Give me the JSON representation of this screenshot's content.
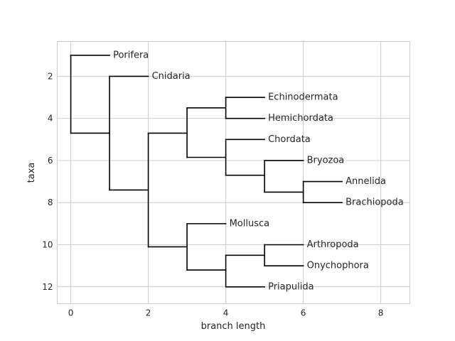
{
  "chart_data": {
    "type": "dendrogram",
    "xlabel": "branch length",
    "ylabel": "taxa",
    "xlim": [
      -0.35,
      8.75
    ],
    "ylim": [
      12.8,
      0.35
    ],
    "y_inverted": true,
    "grid": true,
    "x_ticks": [
      0,
      2,
      4,
      6,
      8
    ],
    "y_ticks": [
      2,
      4,
      6,
      8,
      10,
      12
    ],
    "line_color": "#000000",
    "grid_color": "#cccccc",
    "leaves": [
      {
        "name": "Porifera",
        "x": 1,
        "y": 1
      },
      {
        "name": "Cnidaria",
        "x": 2,
        "y": 2
      },
      {
        "name": "Echinodermata",
        "x": 5,
        "y": 3
      },
      {
        "name": "Hemichordata",
        "x": 5,
        "y": 4
      },
      {
        "name": "Chordata",
        "x": 5,
        "y": 5
      },
      {
        "name": "Bryozoa",
        "x": 6,
        "y": 6
      },
      {
        "name": "Annelida",
        "x": 7,
        "y": 7
      },
      {
        "name": "Brachiopoda",
        "x": 7,
        "y": 8
      },
      {
        "name": "Mollusca",
        "x": 4,
        "y": 9
      },
      {
        "name": "Arthropoda",
        "x": 6,
        "y": 10
      },
      {
        "name": "Onychophora",
        "x": 6,
        "y": 11
      },
      {
        "name": "Priapulida",
        "x": 5,
        "y": 12
      }
    ],
    "branches": [
      {
        "from": [
          0,
          1
        ],
        "to": [
          1,
          1
        ]
      },
      {
        "from": [
          0,
          4.7
        ],
        "to": [
          1,
          4.7
        ]
      },
      {
        "from": [
          0,
          1
        ],
        "to": [
          0,
          4.7
        ]
      },
      {
        "from": [
          1,
          2
        ],
        "to": [
          2,
          2
        ]
      },
      {
        "from": [
          1,
          7.4
        ],
        "to": [
          2,
          7.4
        ]
      },
      {
        "from": [
          1,
          2
        ],
        "to": [
          1,
          7.4
        ]
      },
      {
        "from": [
          2,
          4.7
        ],
        "to": [
          3,
          4.7
        ]
      },
      {
        "from": [
          2,
          10.1
        ],
        "to": [
          3,
          10.1
        ]
      },
      {
        "from": [
          2,
          4.7
        ],
        "to": [
          2,
          10.1
        ]
      },
      {
        "from": [
          3,
          3.5
        ],
        "to": [
          4,
          3.5
        ]
      },
      {
        "from": [
          3,
          5.85
        ],
        "to": [
          4,
          5.85
        ]
      },
      {
        "from": [
          3,
          3.5
        ],
        "to": [
          3,
          5.85
        ]
      },
      {
        "from": [
          4,
          3
        ],
        "to": [
          5,
          3
        ]
      },
      {
        "from": [
          4,
          4
        ],
        "to": [
          5,
          4
        ]
      },
      {
        "from": [
          4,
          3
        ],
        "to": [
          4,
          4
        ]
      },
      {
        "from": [
          4,
          5
        ],
        "to": [
          5,
          5
        ]
      },
      {
        "from": [
          4,
          6.7
        ],
        "to": [
          5,
          6.7
        ]
      },
      {
        "from": [
          4,
          5
        ],
        "to": [
          4,
          6.7
        ]
      },
      {
        "from": [
          5,
          6
        ],
        "to": [
          6,
          6
        ]
      },
      {
        "from": [
          5,
          7.5
        ],
        "to": [
          6,
          7.5
        ]
      },
      {
        "from": [
          5,
          6
        ],
        "to": [
          5,
          7.5
        ]
      },
      {
        "from": [
          6,
          7
        ],
        "to": [
          7,
          7
        ]
      },
      {
        "from": [
          6,
          8
        ],
        "to": [
          7,
          8
        ]
      },
      {
        "from": [
          6,
          7
        ],
        "to": [
          6,
          8
        ]
      },
      {
        "from": [
          3,
          9
        ],
        "to": [
          4,
          9
        ]
      },
      {
        "from": [
          3,
          11.2
        ],
        "to": [
          4,
          11.2
        ]
      },
      {
        "from": [
          3,
          9
        ],
        "to": [
          3,
          11.2
        ]
      },
      {
        "from": [
          4,
          10.5
        ],
        "to": [
          5,
          10.5
        ]
      },
      {
        "from": [
          4,
          12
        ],
        "to": [
          5,
          12
        ]
      },
      {
        "from": [
          4,
          10.5
        ],
        "to": [
          4,
          12
        ]
      },
      {
        "from": [
          5,
          10
        ],
        "to": [
          6,
          10
        ]
      },
      {
        "from": [
          5,
          11
        ],
        "to": [
          6,
          11
        ]
      },
      {
        "from": [
          5,
          10
        ],
        "to": [
          5,
          11
        ]
      }
    ]
  }
}
